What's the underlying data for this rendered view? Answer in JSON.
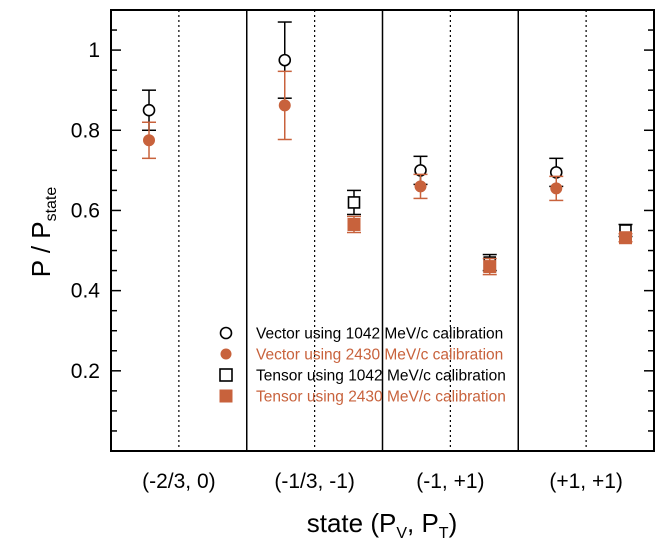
{
  "chart_data": {
    "type": "scatter",
    "xlabel": "state (P",
    "xlabel_sub1": "V",
    "xlabel_mid": ", P",
    "xlabel_sub2": "T",
    "xlabel_end": ")",
    "ylabel": "P / P",
    "ylabel_sub": "state",
    "categories": [
      "(-2/3, 0)",
      "(-1/3, -1)",
      "(-1, +1)",
      "(+1, +1)"
    ],
    "ylim": [
      0,
      1.1
    ],
    "yticks": [
      "0.2",
      "0.4",
      "0.6",
      "0.8",
      "1"
    ],
    "ytick_values": [
      0.2,
      0.4,
      0.6,
      0.8,
      1.0
    ],
    "legend_position": "bottom-center",
    "series": [
      {
        "name": "Vector using 1042 MeV/c calibration",
        "color": "#000000",
        "marker": "open-circle",
        "points": [
          {
            "category": 0,
            "offset": "vector",
            "y": 0.85,
            "err": 0.05
          },
          {
            "category": 1,
            "offset": "vector",
            "y": 0.975,
            "err": 0.095
          },
          {
            "category": 2,
            "offset": "vector",
            "y": 0.7,
            "err": 0.035
          },
          {
            "category": 3,
            "offset": "vector",
            "y": 0.695,
            "err": 0.035
          }
        ]
      },
      {
        "name": "Vector using 2430 MeV/c calibration",
        "color": "#c8623c",
        "marker": "filled-circle",
        "points": [
          {
            "category": 0,
            "offset": "vector",
            "y": 0.775,
            "err": 0.045
          },
          {
            "category": 1,
            "offset": "vector",
            "y": 0.862,
            "err": 0.085
          },
          {
            "category": 2,
            "offset": "vector",
            "y": 0.66,
            "err": 0.03
          },
          {
            "category": 3,
            "offset": "vector",
            "y": 0.655,
            "err": 0.03
          }
        ]
      },
      {
        "name": "Tensor using 1042 MeV/c calibration",
        "color": "#000000",
        "marker": "open-square",
        "points": [
          {
            "category": 1,
            "offset": "tensor",
            "y": 0.62,
            "err": 0.03
          },
          {
            "category": 2,
            "offset": "tensor",
            "y": 0.47,
            "err": 0.02
          },
          {
            "category": 3,
            "offset": "tensor",
            "y": 0.55,
            "err": 0.015
          }
        ]
      },
      {
        "name": "Tensor using 2430 MeV/c calibration",
        "color": "#c8623c",
        "marker": "filled-square",
        "points": [
          {
            "category": 1,
            "offset": "tensor",
            "y": 0.565,
            "err": 0.02
          },
          {
            "category": 2,
            "offset": "tensor",
            "y": 0.46,
            "err": 0.02
          },
          {
            "category": 3,
            "offset": "tensor",
            "y": 0.532,
            "err": 0.01
          }
        ]
      }
    ]
  }
}
